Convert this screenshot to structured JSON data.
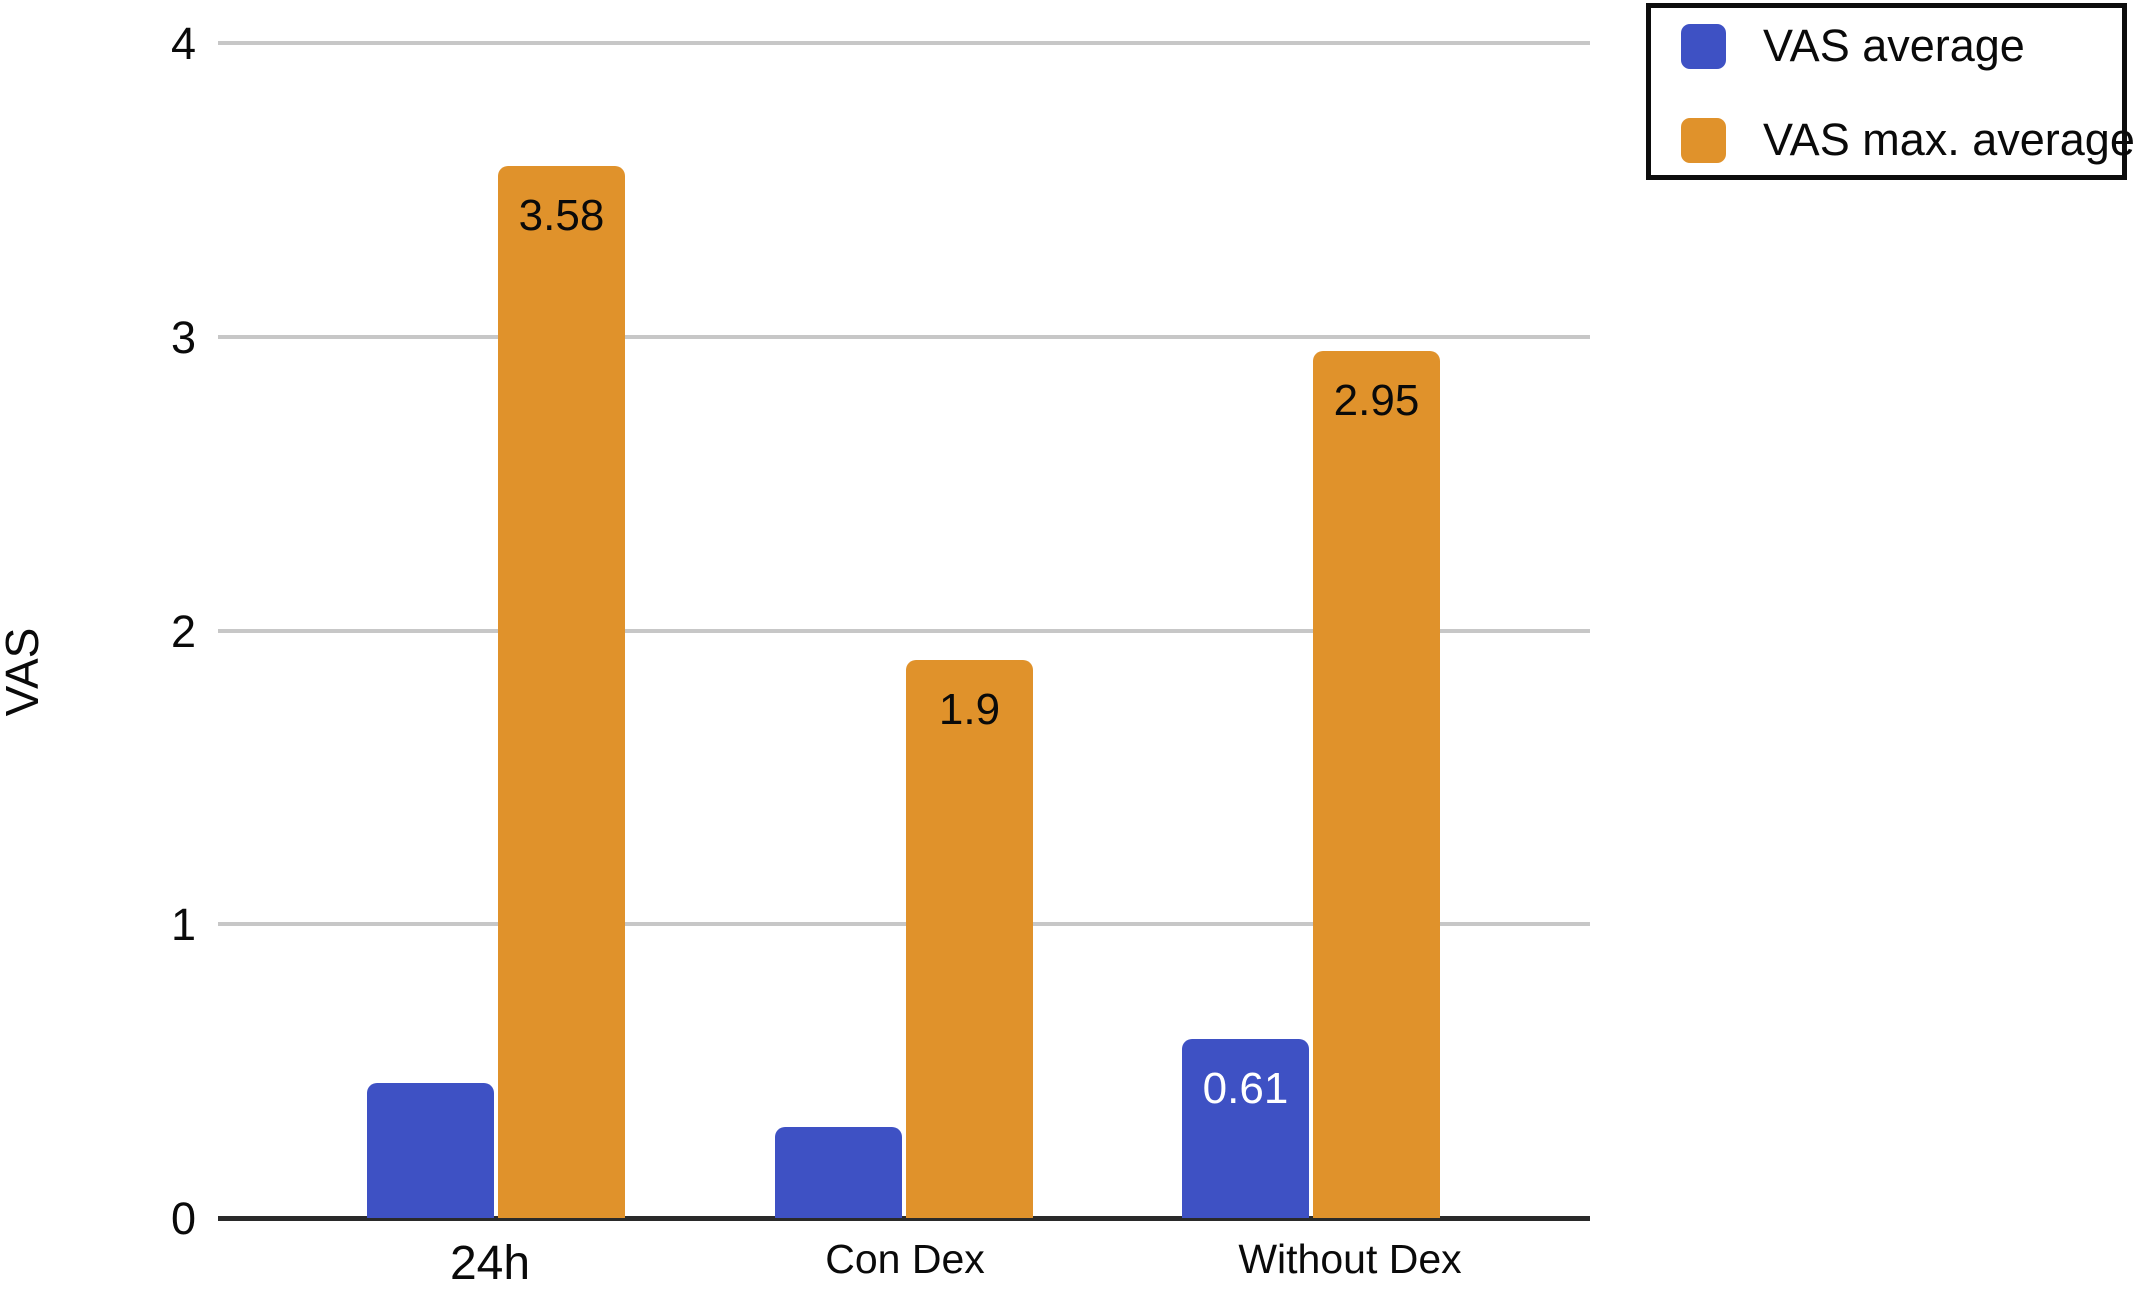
{
  "figure": {
    "background": "#ffffff"
  },
  "chart_data": {
    "type": "bar",
    "title": "",
    "categories": [
      "24h",
      "Con Dex",
      "Without Dex"
    ],
    "series": [
      {
        "name": "VAS average",
        "color": "#3E51C4",
        "values": [
          0.46,
          0.31,
          0.61
        ],
        "data_labels": [
          null,
          null,
          "0.61"
        ],
        "data_label_color": "#ffffff"
      },
      {
        "name": "VAS max. average",
        "color": "#E0922B",
        "values": [
          3.58,
          1.9,
          2.95
        ],
        "data_labels": [
          "3.58",
          "1.9",
          "2.95"
        ],
        "data_label_color": "#0a0a0a"
      }
    ],
    "xlabel": "",
    "ylabel": "VAS",
    "ylim": [
      0,
      4
    ],
    "yticks": [
      0,
      1,
      2,
      3,
      4
    ],
    "grid": true,
    "grid_color": "#c7c7c7",
    "axis_color": "#2a2a2a",
    "legend": {
      "position": "top-right",
      "entries": [
        "VAS average",
        "VAS max. average"
      ]
    }
  }
}
